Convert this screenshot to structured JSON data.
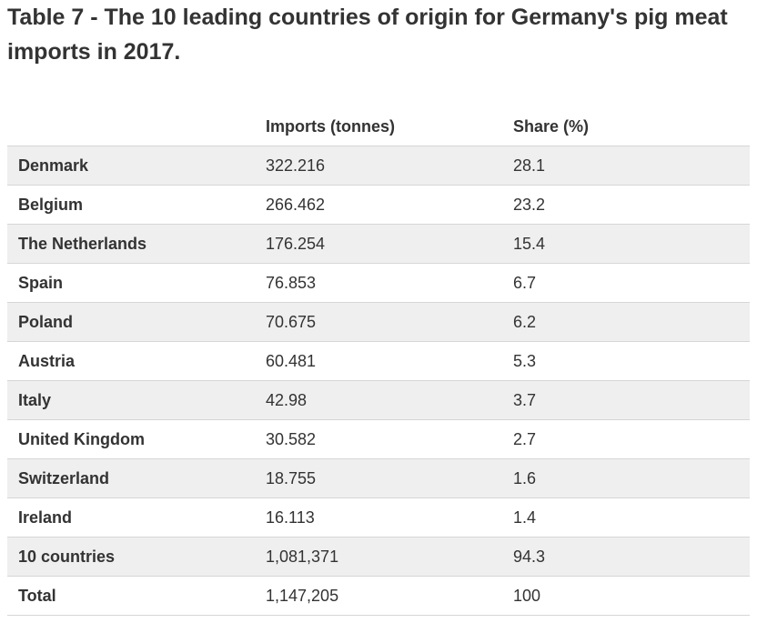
{
  "title": "Table 7 - The 10 leading countries of origin for Germany's pig meat imports in 2017.",
  "columns": [
    "",
    "Imports (tonnes)",
    "Share (%)"
  ],
  "rows": [
    {
      "country": "Denmark",
      "imports": "322.216",
      "share": "28.1"
    },
    {
      "country": "Belgium",
      "imports": "266.462",
      "share": "23.2"
    },
    {
      "country": "The Netherlands",
      "imports": "176.254",
      "share": "15.4"
    },
    {
      "country": "Spain",
      "imports": "76.853",
      "share": "6.7"
    },
    {
      "country": "Poland",
      "imports": "70.675",
      "share": "6.2"
    },
    {
      "country": "Austria",
      "imports": "60.481",
      "share": "5.3"
    },
    {
      "country": "Italy",
      "imports": "42.98",
      "share": "3.7"
    },
    {
      "country": "United Kingdom",
      "imports": "30.582",
      "share": "2.7"
    },
    {
      "country": "Switzerland",
      "imports": "18.755",
      "share": "1.6"
    },
    {
      "country": "Ireland",
      "imports": "16.113",
      "share": "1.4"
    },
    {
      "country": "10 countries",
      "imports": "1,081,371",
      "share": "94.3"
    },
    {
      "country": "Total",
      "imports": "1,147,205",
      "share": "100"
    }
  ]
}
